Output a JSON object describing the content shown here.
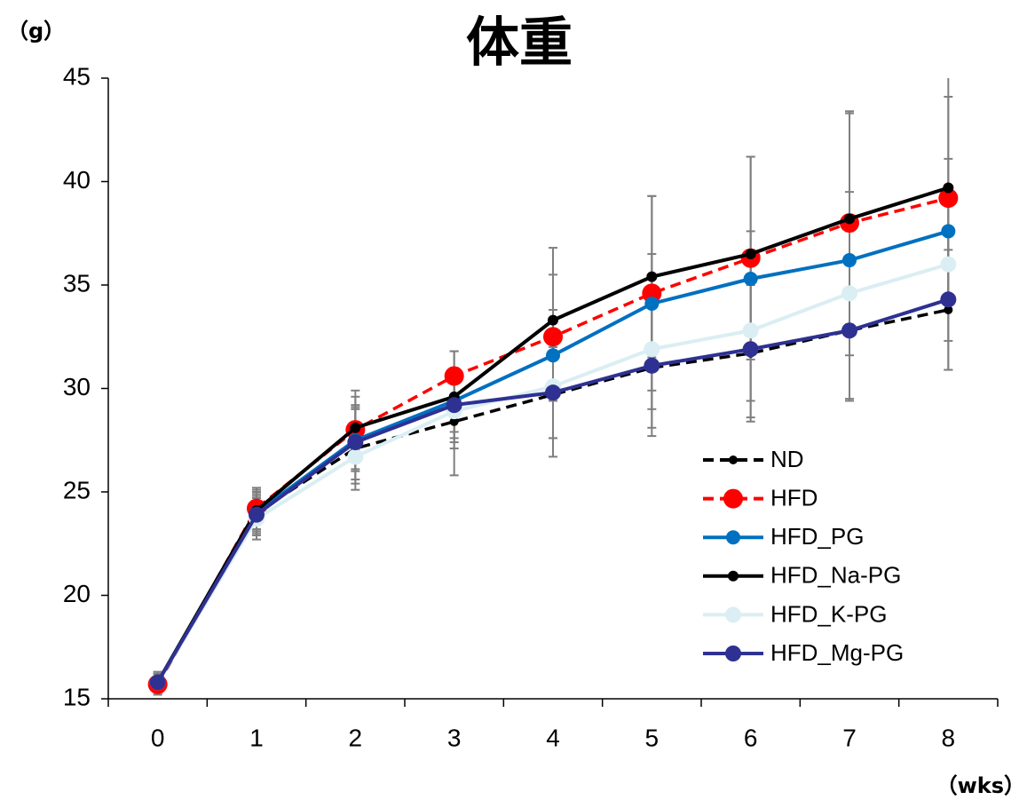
{
  "chart_data": {
    "type": "line",
    "title": "体重",
    "y_label": "（g）",
    "x_label": "（wks）",
    "categories": [
      "0",
      "1",
      "2",
      "3",
      "4",
      "5",
      "6",
      "7",
      "8"
    ],
    "ylim": [
      15,
      45
    ],
    "yticks": [
      15,
      20,
      25,
      30,
      35,
      40,
      45
    ],
    "series": [
      {
        "name": "ND",
        "color": "#000000",
        "line_style": "dashed",
        "marker_size": 5,
        "values": [
          15.7,
          24.0,
          27.1,
          28.4,
          29.7,
          31.0,
          31.7,
          32.8,
          33.8
        ],
        "errors": [
          0.5,
          1.0,
          2.0,
          2.6,
          3.0,
          3.3,
          3.3,
          3.4,
          2.9
        ]
      },
      {
        "name": "HFD",
        "color": "#ff0000",
        "line_style": "dashed",
        "marker_size": 11,
        "values": [
          15.7,
          24.2,
          28.0,
          30.6,
          32.5,
          34.6,
          36.3,
          38.0,
          39.2
        ],
        "errors": [
          0.5,
          1.0,
          1.9,
          1.2,
          3.0,
          4.7,
          4.9,
          5.4,
          4.9
        ]
      },
      {
        "name": "HFD_PG",
        "color": "#0070c0",
        "line_style": "solid",
        "marker_size": 8,
        "values": [
          15.8,
          24.0,
          27.5,
          29.4,
          31.6,
          34.1,
          35.3,
          36.2,
          37.6
        ],
        "errors": [
          0.5,
          0.8,
          1.5,
          1.5,
          2.2,
          2.4,
          2.3,
          3.3,
          3.5
        ]
      },
      {
        "name": "HFD_Na-PG",
        "color": "#000000",
        "line_style": "solid",
        "marker_size": 6,
        "values": [
          15.8,
          24.1,
          28.1,
          29.6,
          33.3,
          35.4,
          36.5,
          38.2,
          39.7
        ],
        "errors": [
          0.5,
          1.0,
          1.5,
          2.2,
          3.5,
          3.9,
          4.7,
          5.1,
          5.5
        ]
      },
      {
        "name": "HFD_K-PG",
        "color": "#daeef3",
        "line_style": "solid",
        "marker_size": 9,
        "values": [
          15.8,
          23.7,
          26.7,
          28.9,
          30.1,
          31.9,
          32.8,
          34.6,
          36.0
        ],
        "errors": [
          0.4,
          1.0,
          1.3,
          1.8,
          2.5,
          2.9,
          3.4,
          3.0,
          3.7
        ]
      },
      {
        "name": "HFD_Mg-PG",
        "color": "#2e3192",
        "line_style": "solid",
        "marker_size": 9,
        "values": [
          15.8,
          23.9,
          27.4,
          29.2,
          29.8,
          31.1,
          31.9,
          32.8,
          34.3
        ],
        "errors": [
          0.4,
          1.0,
          1.8,
          1.6,
          2.2,
          3.0,
          3.3,
          3.3,
          3.4
        ]
      }
    ],
    "error_bar_color": "#7f7f7f"
  }
}
